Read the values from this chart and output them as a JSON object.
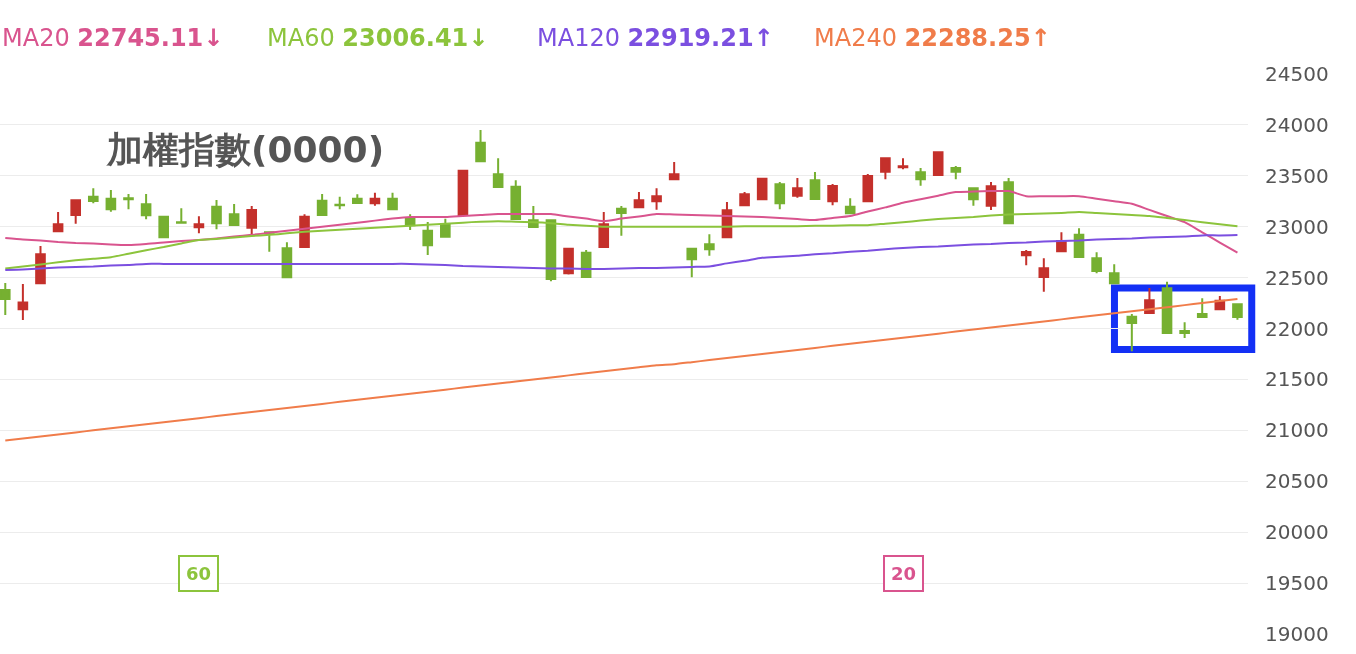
{
  "chart_data": {
    "type": "candlestick",
    "title": "加權指數(0000)",
    "categories": [
      null,
      null,
      null,
      null,
      null,
      null,
      null,
      null,
      null,
      null,
      null,
      null,
      null,
      null,
      null,
      null,
      null,
      null,
      null,
      null,
      null,
      null,
      null,
      null,
      null,
      null,
      null,
      null,
      null,
      null,
      null,
      null,
      null,
      null,
      null,
      null,
      null,
      null,
      null,
      null,
      null,
      null,
      null,
      null,
      null,
      null,
      null,
      null,
      null,
      null,
      null,
      null,
      null,
      null,
      null,
      null,
      null,
      null,
      null,
      null,
      null,
      null,
      null,
      null,
      null,
      null,
      null,
      null,
      null,
      null,
      null
    ],
    "ohlc": [
      [
        22378,
        22447,
        22133,
        22290
      ],
      [
        22189,
        22437,
        22084,
        22257
      ],
      [
        22444,
        22810,
        22444,
        22729
      ],
      [
        22955,
        23144,
        22955,
        23024
      ],
      [
        23115,
        23259,
        23030,
        23259
      ],
      [
        23295,
        23377,
        23230,
        23252
      ],
      [
        23275,
        23361,
        23147,
        23171
      ],
      [
        23280,
        23321,
        23171,
        23270
      ],
      [
        23220,
        23321,
        23073,
        23112
      ],
      [
        23098,
        23098,
        22896,
        22896
      ],
      [
        23045,
        23181,
        23040,
        23040
      ],
      [
        22994,
        23102,
        22935,
        23024
      ],
      [
        23197,
        23262,
        22974,
        23033
      ],
      [
        23122,
        23223,
        23017,
        23017
      ],
      [
        22990,
        23203,
        22928,
        23164
      ],
      [
        22945,
        22945,
        22754,
        22940
      ],
      [
        22788,
        22847,
        22503,
        22503
      ],
      [
        22801,
        23122,
        22801,
        23098
      ],
      [
        23255,
        23321,
        23115,
        23115
      ],
      [
        23216,
        23295,
        23171,
        23210
      ],
      [
        23275,
        23318,
        23233,
        23233
      ],
      [
        23230,
        23334,
        23206,
        23275
      ],
      [
        23275,
        23334,
        23171,
        23171
      ],
      [
        23079,
        23122,
        22968,
        23014
      ],
      [
        22961,
        23046,
        22722,
        22817
      ],
      [
        23024,
        23079,
        22902,
        22902
      ],
      [
        23115,
        23550,
        23115,
        23550
      ],
      [
        23825,
        23950,
        23642,
        23642
      ],
      [
        23515,
        23672,
        23390,
        23390
      ],
      [
        23393,
        23456,
        23076,
        23076
      ],
      [
        23063,
        23203,
        22997,
        22997
      ],
      [
        23063,
        23063,
        22464,
        22486
      ],
      [
        22542,
        22784,
        22530,
        22784
      ],
      [
        22745,
        22771,
        22506,
        22506
      ],
      [
        22801,
        23144,
        22801,
        23024
      ],
      [
        23177,
        23203,
        22912,
        23135
      ],
      [
        23191,
        23341,
        23191,
        23259
      ],
      [
        23250,
        23377,
        23167,
        23299
      ],
      [
        23466,
        23636,
        23466,
        23515
      ],
      [
        22784,
        22784,
        22503,
        22680
      ],
      [
        22827,
        22925,
        22715,
        22778
      ],
      [
        22896,
        23243,
        22896,
        23161
      ],
      [
        23210,
        23341,
        23210,
        23318
      ],
      [
        23269,
        23472,
        23269,
        23472
      ],
      [
        23417,
        23439,
        23171,
        23230
      ],
      [
        23305,
        23478,
        23285,
        23377
      ],
      [
        23456,
        23537,
        23272,
        23272
      ],
      [
        23250,
        23419,
        23210,
        23400
      ],
      [
        23197,
        23279,
        23132,
        23132
      ],
      [
        23250,
        23518,
        23250,
        23498
      ],
      [
        23540,
        23672,
        23466,
        23672
      ],
      [
        23585,
        23672,
        23564,
        23595
      ],
      [
        23534,
        23577,
        23403,
        23466
      ],
      [
        23508,
        23731,
        23508,
        23731
      ],
      [
        23577,
        23596,
        23466,
        23540
      ],
      [
        23377,
        23377,
        23206,
        23269
      ],
      [
        23206,
        23439,
        23164,
        23397
      ],
      [
        23436,
        23478,
        23033,
        23033
      ],
      [
        22719,
        22771,
        22621,
        22752
      ],
      [
        22506,
        22690,
        22362,
        22591
      ],
      [
        22758,
        22945,
        22758,
        22860
      ],
      [
        22921,
        22984,
        22702,
        22702
      ],
      [
        22690,
        22749,
        22542,
        22565
      ],
      [
        22542,
        22631,
        22444,
        22444
      ],
      [
        22116,
        22143,
        21776,
        22054
      ],
      [
        22152,
        22398,
        22152,
        22277
      ],
      [
        22395,
        22460,
        21956,
        21956
      ],
      [
        21976,
        22061,
        21907,
        21956
      ],
      [
        22143,
        22297,
        22113,
        22113
      ],
      [
        22189,
        22319,
        22189,
        22273
      ],
      [
        22238,
        22238,
        22087,
        22113
      ]
    ],
    "series": [
      {
        "type": "line",
        "name": "MA20",
        "color": "#d9548e",
        "values": [
          22890,
          22875,
          22865,
          22850,
          22840,
          22835,
          22825,
          22820,
          22830,
          22845,
          22860,
          22870,
          22885,
          22905,
          22920,
          22940,
          22960,
          22980,
          23000,
          23020,
          23040,
          23060,
          23080,
          23095,
          23095,
          23095,
          23105,
          23115,
          23125,
          23125,
          23125,
          23125,
          23100,
          23080,
          23055,
          23080,
          23100,
          23125,
          23120,
          23115,
          23110,
          23105,
          23100,
          23095,
          23085,
          23075,
          23065,
          23085,
          23105,
          23150,
          23190,
          23235,
          23270,
          23305,
          23340,
          23345,
          23350,
          23350,
          23300,
          23300,
          23300,
          23300,
          23275,
          23250,
          23225,
          23165,
          23105,
          23045,
          22945,
          22845,
          22745
        ]
      },
      {
        "type": "line",
        "name": "MA60",
        "color": "#8cc43c",
        "values": [
          22590,
          22610,
          22630,
          22650,
          22670,
          22685,
          22700,
          22735,
          22770,
          22800,
          22835,
          22870,
          22880,
          22895,
          22910,
          22920,
          22935,
          22950,
          22960,
          22970,
          22980,
          22990,
          23000,
          23010,
          23020,
          23030,
          23040,
          23050,
          23055,
          23050,
          23045,
          23035,
          23020,
          23010,
          23000,
          23000,
          23000,
          23000,
          23000,
          23000,
          23000,
          23000,
          23005,
          23005,
          23005,
          23005,
          23010,
          23010,
          23015,
          23015,
          23030,
          23045,
          23060,
          23075,
          23085,
          23095,
          23110,
          23120,
          23125,
          23130,
          23135,
          23145,
          23135,
          23125,
          23115,
          23105,
          23085,
          23065,
          23045,
          23025,
          23005
        ]
      },
      {
        "type": "line",
        "name": "MA120",
        "color": "#7b4fe0",
        "values": [
          22575,
          22580,
          22590,
          22600,
          22605,
          22610,
          22620,
          22625,
          22635,
          22635,
          22635,
          22635,
          22635,
          22635,
          22635,
          22635,
          22635,
          22635,
          22635,
          22635,
          22635,
          22635,
          22635,
          22635,
          22630,
          22625,
          22615,
          22610,
          22605,
          22600,
          22595,
          22590,
          22590,
          22585,
          22585,
          22590,
          22595,
          22595,
          22600,
          22605,
          22610,
          22640,
          22665,
          22695,
          22705,
          22715,
          22730,
          22740,
          22755,
          22765,
          22780,
          22790,
          22800,
          22805,
          22815,
          22825,
          22830,
          22840,
          22845,
          22855,
          22860,
          22865,
          22875,
          22880,
          22885,
          22895,
          22900,
          22905,
          22915,
          22915,
          22919
        ]
      },
      {
        "type": "line",
        "name": "MA240",
        "color": "#f07c4a",
        "values": [
          20900,
          20920,
          20940,
          20960,
          20980,
          21000,
          21020,
          21040,
          21060,
          21080,
          21100,
          21120,
          21140,
          21160,
          21180,
          21200,
          21220,
          21240,
          21260,
          21280,
          21300,
          21320,
          21340,
          21360,
          21380,
          21400,
          21420,
          21440,
          21460,
          21480,
          21500,
          21520,
          21540,
          21560,
          21580,
          21600,
          21620,
          21640,
          21650,
          21670,
          21690,
          21710,
          21730,
          21750,
          21770,
          21790,
          21810,
          21830,
          21850,
          21870,
          21890,
          21910,
          21930,
          21950,
          21970,
          21990,
          22010,
          22030,
          22050,
          22070,
          22090,
          22110,
          22130,
          22150,
          22170,
          22190,
          22210,
          22230,
          22250,
          22270,
          22290
        ]
      }
    ],
    "annotations": [
      "22745.11↓",
      "23006.41↓",
      "22919.21↑",
      "22288.25↑",
      "60",
      "20"
    ],
    "ylim": [
      19000,
      24500
    ],
    "yticks": [
      19000,
      19500,
      20000,
      20500,
      21000,
      21500,
      22000,
      22500,
      23000,
      23500,
      24000,
      24500
    ],
    "grid": "y",
    "tick_labels": "y"
  }
}
